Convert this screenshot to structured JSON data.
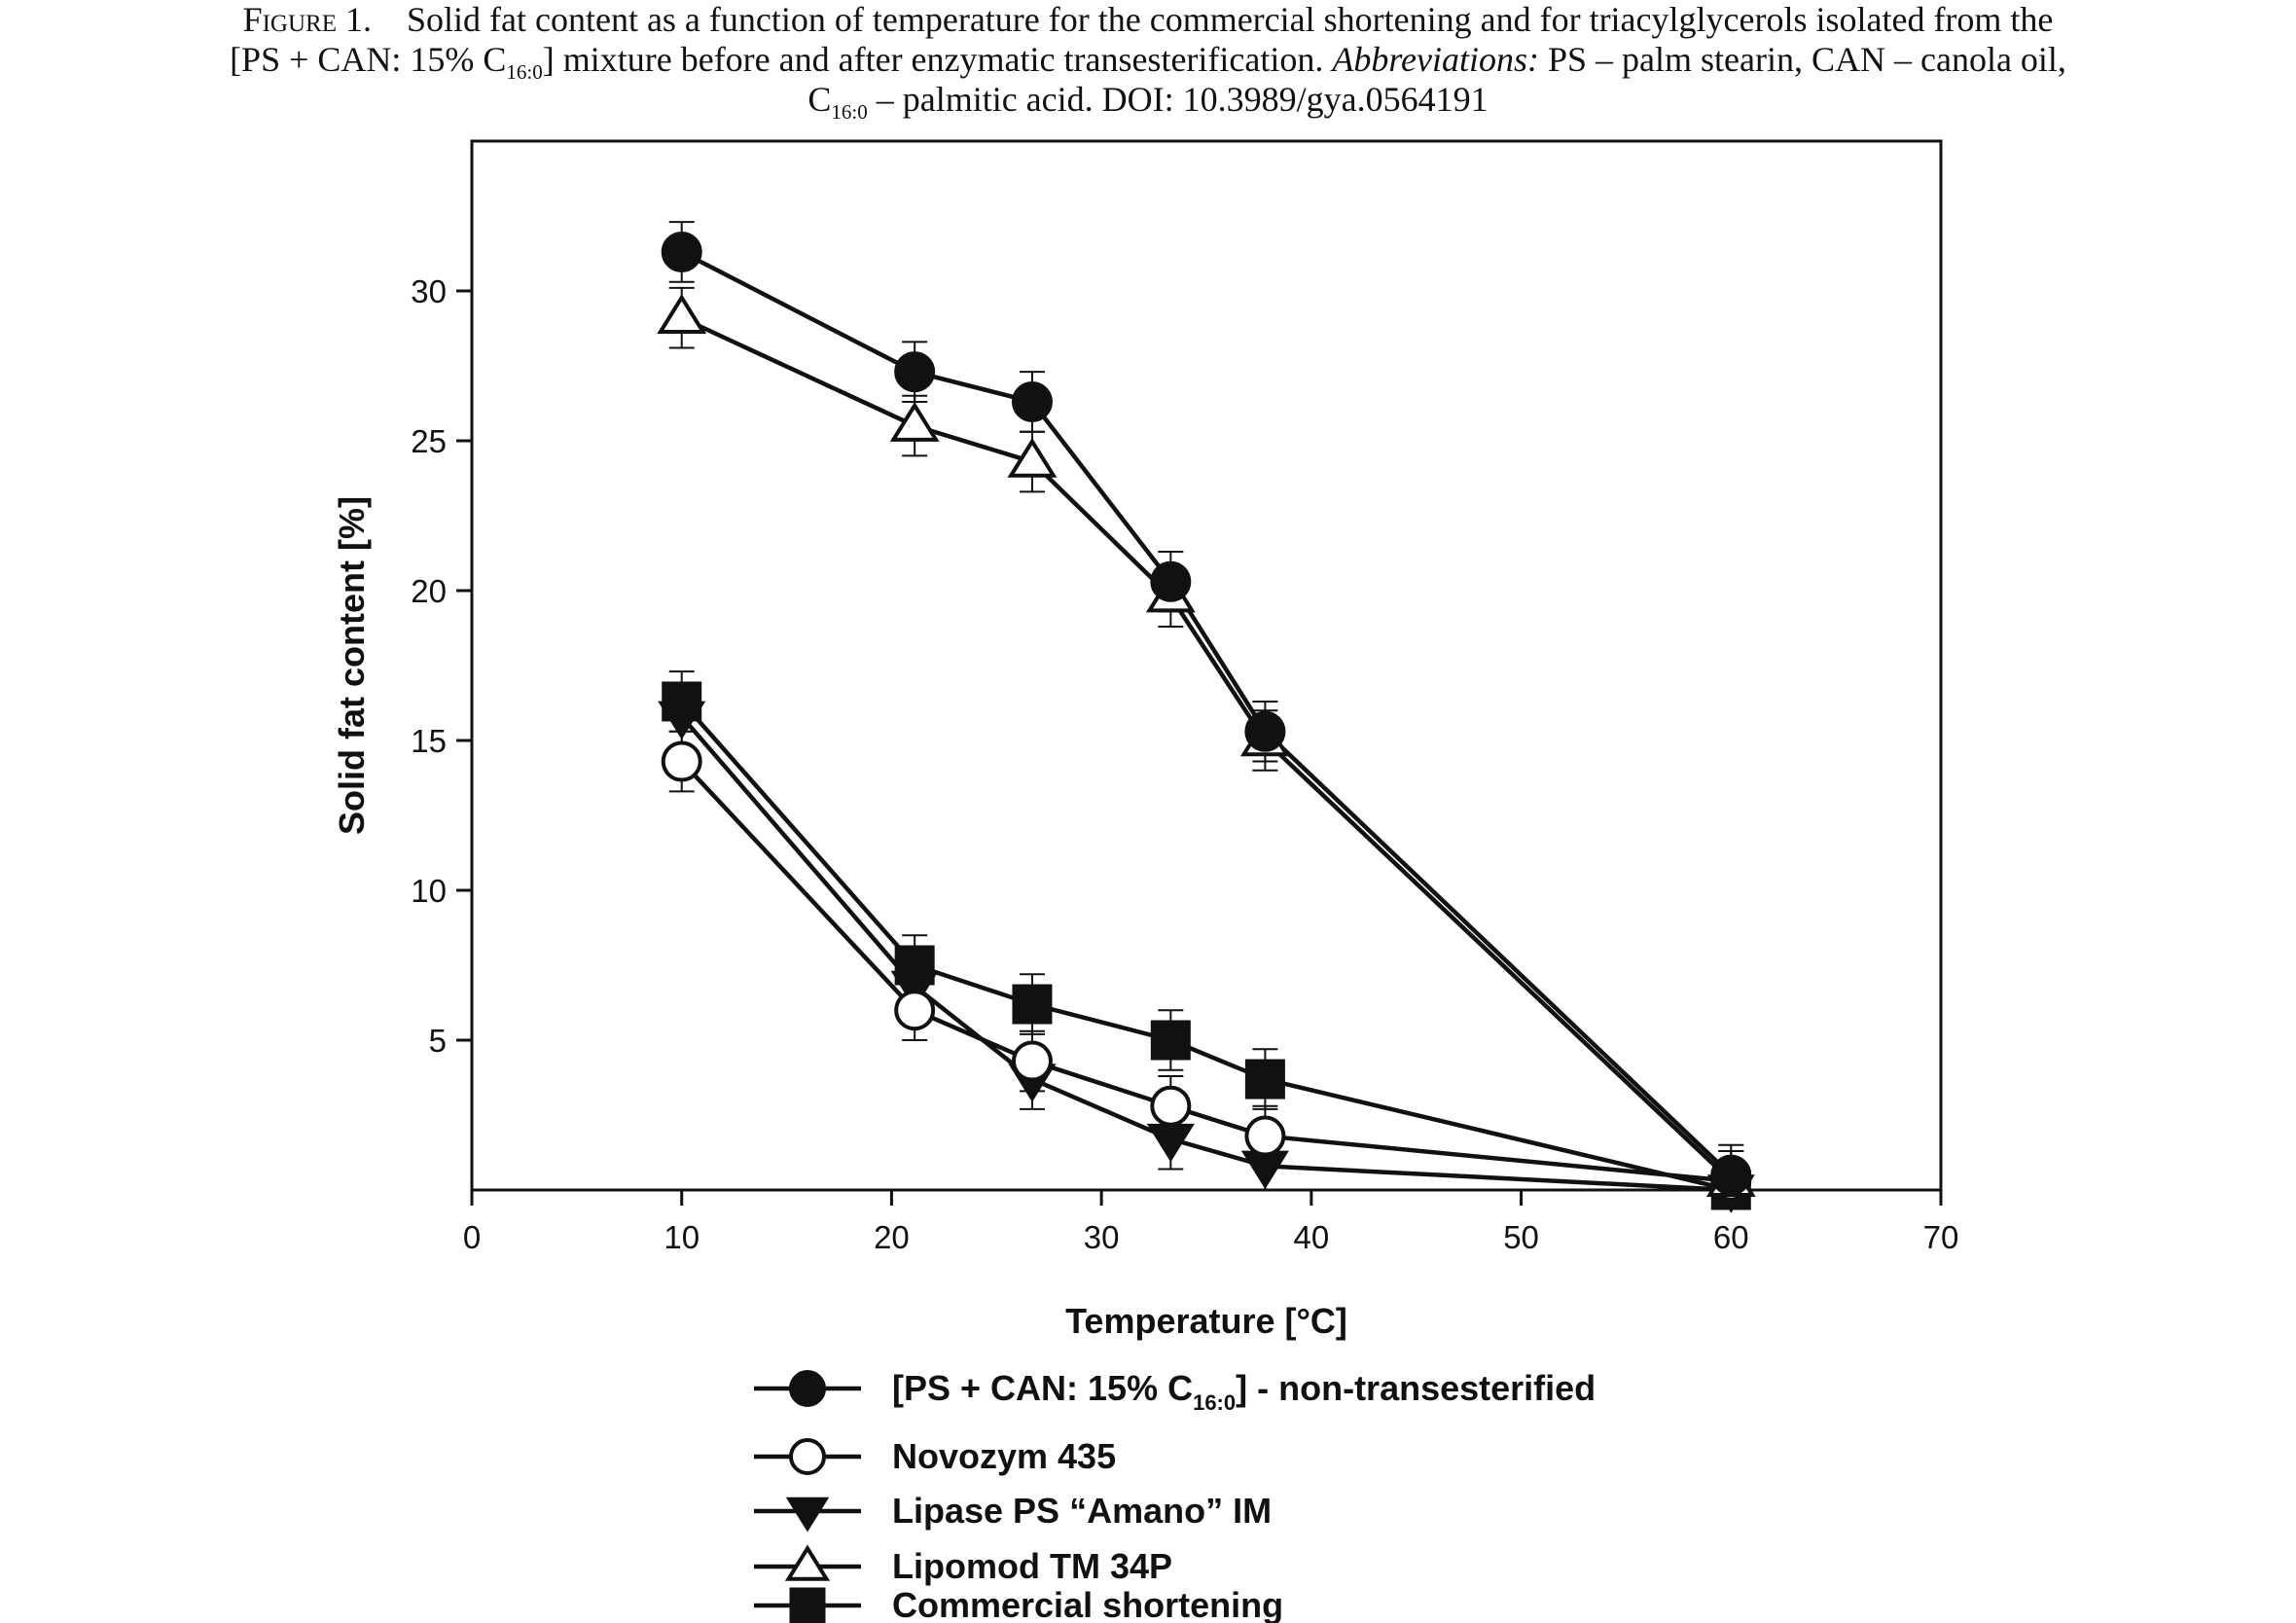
{
  "caption": {
    "figure_label": "Figure 1.",
    "line1": "Solid fat content as a function of temperature for the commercial shortening and for triacylglycerols isolated from the",
    "line2_a": "[PS + CAN: 15% C",
    "line2_sub": "16:0",
    "line2_b": "] mixture before and after enzymatic transesterification. ",
    "line2_abbrev": "Abbreviations:",
    "line2_c": " PS – palm stearin, CAN – canola oil,",
    "line3_a": "C",
    "line3_sub": "16:0",
    "line3_b": " – palmitic acid. DOI: 10.3989/gya.0564191"
  },
  "chart_data": {
    "type": "line",
    "title": "",
    "xlabel": "Temperature [°C]",
    "ylabel": "Solid fat content [%]",
    "xlim": [
      0,
      70
    ],
    "ylim": [
      0,
      35
    ],
    "xticks": [
      0,
      10,
      20,
      30,
      40,
      50,
      60,
      70
    ],
    "yticks": [
      5,
      10,
      15,
      20,
      25,
      30
    ],
    "grid": false,
    "legend_position": "bottom",
    "x": [
      10,
      21.1,
      26.7,
      33.3,
      37.8,
      60
    ],
    "series": [
      {
        "name": "[PS + CAN: 15% C16:0] - non-transesterified",
        "name_main": "[PS + CAN: 15% C",
        "name_sub": "16:0",
        "name_rest": "] - non-transesterified",
        "marker": "filled-circle",
        "values": [
          31.3,
          27.3,
          26.3,
          20.3,
          15.3,
          0.5
        ],
        "errors": [
          1.0,
          1.0,
          1.0,
          1.0,
          1.0,
          1.0
        ]
      },
      {
        "name": "Novozym 435",
        "name_main": "Novozym 435",
        "name_sub": "",
        "name_rest": "",
        "marker": "open-circle",
        "values": [
          14.3,
          6.0,
          4.3,
          2.8,
          1.8,
          0.3
        ],
        "errors": [
          1.0,
          1.0,
          1.0,
          1.0,
          1.0,
          1.0
        ]
      },
      {
        "name": "Lipase PS “Amano” IM",
        "name_main": "Lipase PS “Amano” IM",
        "name_sub": "",
        "name_rest": "",
        "marker": "filled-triangle-down",
        "values": [
          15.8,
          6.8,
          3.7,
          1.7,
          0.8,
          0.0
        ],
        "errors": [
          1.0,
          1.0,
          1.0,
          1.0,
          1.0,
          1.0
        ]
      },
      {
        "name": "Lipomod TM 34P",
        "name_main": "Lipomod TM 34P",
        "name_sub": "",
        "name_rest": "",
        "marker": "open-triangle-up",
        "values": [
          29.1,
          25.5,
          24.3,
          19.8,
          15.0,
          0.3
        ],
        "errors": [
          1.0,
          1.0,
          1.0,
          1.0,
          1.0,
          1.0
        ]
      },
      {
        "name": "Commercial shortening",
        "name_main": "Commercial shortening",
        "name_sub": "",
        "name_rest": "",
        "marker": "filled-square",
        "values": [
          16.3,
          7.5,
          6.2,
          5.0,
          3.7,
          0.0
        ],
        "errors": [
          1.0,
          1.0,
          1.0,
          1.0,
          1.0,
          1.0
        ]
      }
    ]
  }
}
